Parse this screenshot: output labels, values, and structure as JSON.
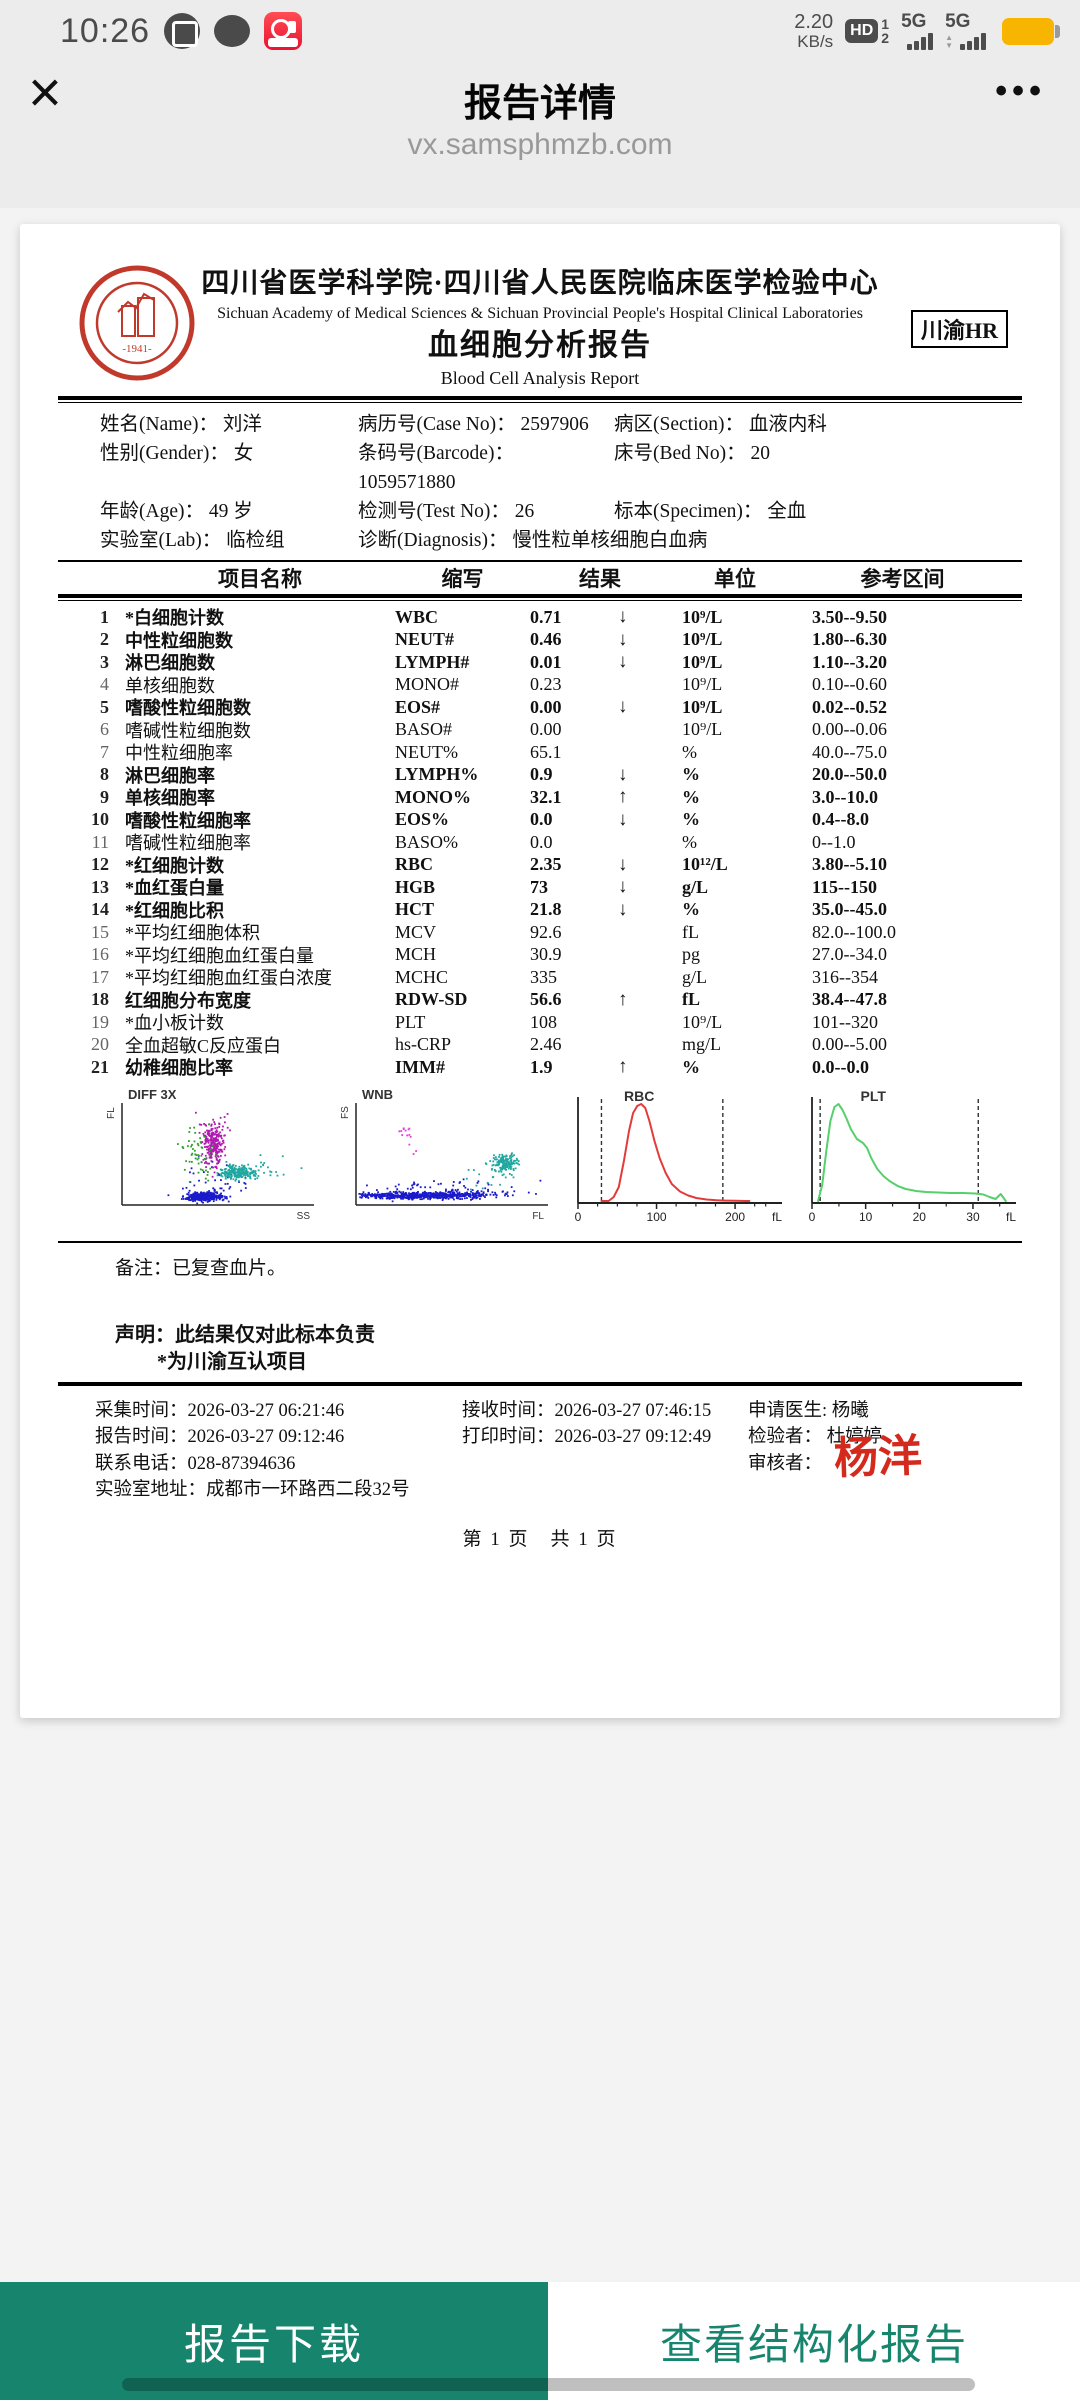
{
  "status_bar": {
    "time": "10:26",
    "net_speed_value": "2.20",
    "net_speed_unit": "KB/s",
    "hd_label": "HD",
    "sim1": "1",
    "sim2": "2",
    "network1": "5G",
    "network2": "5G"
  },
  "nav": {
    "close_glyph": "×",
    "title": "报告详情",
    "url": "vx.samsphmzb.com",
    "more_glyph": "•••"
  },
  "report": {
    "hospital_cn": "四川省医学科学院·四川省人民医院临床医学检验中心",
    "hospital_en": "Sichuan Academy of Medical Sciences & Sichuan Provincial People's Hospital Clinical Laboratories",
    "title_cn": "血细胞分析报告",
    "title_en": "Blood Cell Analysis Report",
    "badge": "川渝HR",
    "seal_year": "-1941-",
    "patient_rows": [
      [
        {
          "label": "姓名(Name)：",
          "value": "刘洋"
        },
        {
          "label": "病历号(Case No)：",
          "value": "2597906"
        },
        {
          "label": "病区(Section)：",
          "value": "血液内科"
        }
      ],
      [
        {
          "label": "性别(Gender)：",
          "value": "女"
        },
        {
          "label": "条码号(Barcode)：",
          "value": "1059571880"
        },
        {
          "label": "床号(Bed No)：",
          "value": "20"
        }
      ],
      [
        {
          "label": "年龄(Age)：",
          "value": "49 岁"
        },
        {
          "label": "检测号(Test No)：",
          "value": "26"
        },
        {
          "label": "标本(Specimen)：",
          "value": "全血"
        }
      ],
      [
        {
          "label": "实验室(Lab)：",
          "value": "临检组"
        },
        {
          "label": "诊断(Diagnosis)：",
          "value": "慢性粒单核细胞白血病",
          "span": 2
        }
      ]
    ],
    "columns": [
      "项目名称",
      "缩写",
      "结果",
      "单位",
      "参考区间"
    ],
    "rows": [
      {
        "no": "1",
        "name": "*白细胞计数",
        "abbr": "WBC",
        "result": "0.71",
        "flag": "↓",
        "unit": "10⁹/L",
        "range": "3.50--9.50",
        "abnormal": true
      },
      {
        "no": "2",
        "name": "中性粒细胞数",
        "abbr": "NEUT#",
        "result": "0.46",
        "flag": "↓",
        "unit": "10⁹/L",
        "range": "1.80--6.30",
        "abnormal": true
      },
      {
        "no": "3",
        "name": "淋巴细胞数",
        "abbr": "LYMPH#",
        "result": "0.01",
        "flag": "↓",
        "unit": "10⁹/L",
        "range": "1.10--3.20",
        "abnormal": true
      },
      {
        "no": "4",
        "name": "单核细胞数",
        "abbr": "MONO#",
        "result": "0.23",
        "flag": "",
        "unit": "10⁹/L",
        "range": "0.10--0.60",
        "abnormal": false
      },
      {
        "no": "5",
        "name": "嗜酸性粒细胞数",
        "abbr": "EOS#",
        "result": "0.00",
        "flag": "↓",
        "unit": "10⁹/L",
        "range": "0.02--0.52",
        "abnormal": true
      },
      {
        "no": "6",
        "name": "嗜碱性粒细胞数",
        "abbr": "BASO#",
        "result": "0.00",
        "flag": "",
        "unit": "10⁹/L",
        "range": "0.00--0.06",
        "abnormal": false
      },
      {
        "no": "7",
        "name": "中性粒细胞率",
        "abbr": "NEUT%",
        "result": "65.1",
        "flag": "",
        "unit": "%",
        "range": "40.0--75.0",
        "abnormal": false
      },
      {
        "no": "8",
        "name": "淋巴细胞率",
        "abbr": "LYMPH%",
        "result": "0.9",
        "flag": "↓",
        "unit": "%",
        "range": "20.0--50.0",
        "abnormal": true
      },
      {
        "no": "9",
        "name": "单核细胞率",
        "abbr": "MONO%",
        "result": "32.1",
        "flag": "↑",
        "unit": "%",
        "range": "3.0--10.0",
        "abnormal": true
      },
      {
        "no": "10",
        "name": "嗜酸性粒细胞率",
        "abbr": "EOS%",
        "result": "0.0",
        "flag": "↓",
        "unit": "%",
        "range": "0.4--8.0",
        "abnormal": true
      },
      {
        "no": "11",
        "name": "嗜碱性粒细胞率",
        "abbr": "BASO%",
        "result": "0.0",
        "flag": "",
        "unit": "%",
        "range": "0--1.0",
        "abnormal": false
      },
      {
        "no": "12",
        "name": "*红细胞计数",
        "abbr": "RBC",
        "result": "2.35",
        "flag": "↓",
        "unit": "10¹²/L",
        "range": "3.80--5.10",
        "abnormal": true
      },
      {
        "no": "13",
        "name": "*血红蛋白量",
        "abbr": "HGB",
        "result": "73",
        "flag": "↓",
        "unit": "g/L",
        "range": "115--150",
        "abnormal": true
      },
      {
        "no": "14",
        "name": "*红细胞比积",
        "abbr": "HCT",
        "result": "21.8",
        "flag": "↓",
        "unit": "%",
        "range": "35.0--45.0",
        "abnormal": true
      },
      {
        "no": "15",
        "name": "*平均红细胞体积",
        "abbr": "MCV",
        "result": "92.6",
        "flag": "",
        "unit": "fL",
        "range": "82.0--100.0",
        "abnormal": false
      },
      {
        "no": "16",
        "name": "*平均红细胞血红蛋白量",
        "abbr": "MCH",
        "result": "30.9",
        "flag": "",
        "unit": "pg",
        "range": "27.0--34.0",
        "abnormal": false
      },
      {
        "no": "17",
        "name": "*平均红细胞血红蛋白浓度",
        "abbr": "MCHC",
        "result": "335",
        "flag": "",
        "unit": "g/L",
        "range": "316--354",
        "abnormal": false
      },
      {
        "no": "18",
        "name": "红细胞分布宽度",
        "abbr": "RDW-SD",
        "result": "56.6",
        "flag": "↑",
        "unit": "fL",
        "range": "38.4--47.8",
        "abnormal": true
      },
      {
        "no": "19",
        "name": "*血小板计数",
        "abbr": "PLT",
        "result": "108",
        "flag": "",
        "unit": "10⁹/L",
        "range": "101--320",
        "abnormal": false
      },
      {
        "no": "20",
        "name": "全血超敏C反应蛋白",
        "abbr": "hs-CRP",
        "result": "2.46",
        "flag": "",
        "unit": "mg/L",
        "range": "0.00--5.00",
        "abnormal": false
      },
      {
        "no": "21",
        "name": "幼稚细胞比率",
        "abbr": "IMM#",
        "result": "1.9",
        "flag": "↑",
        "unit": "%",
        "range": "0.0--0.0",
        "abnormal": true
      }
    ],
    "remark": "备注：已复查血片。",
    "declaration": [
      "声明：此结果仅对此标本负责",
      "*为川渝互认项目"
    ],
    "footer_col1": [
      "采集时间：2026-03-27 06:21:46",
      "报告时间：2026-03-27 09:12:46",
      "联系电话：028-87394636",
      "实验室地址：成都市一环路西二段32号"
    ],
    "footer_col2": [
      "接收时间：2026-03-27 07:46:15",
      "打印时间：2026-03-27 09:12:49"
    ],
    "footer_col3": [
      {
        "label": "申请医生:",
        "value": "杨曦",
        "signature": false
      },
      {
        "label": "检验者：",
        "value": "杜婷婷",
        "signature": false
      },
      {
        "label": "审核者：",
        "value": "杨洋",
        "signature": true
      }
    ],
    "page_line": "第 1 页　共 1 页",
    "signature_color": "#d42a1e"
  },
  "chart_data": [
    {
      "id": "diff3x",
      "type": "scatter",
      "title": "DIFF 3X",
      "xlabel": "SS",
      "ylabel": "FL",
      "clusters": [
        {
          "color": "#1a1acc",
          "cx": 0.42,
          "cy": 0.09,
          "sx": 0.05,
          "sy": 0.02,
          "n": 350
        },
        {
          "color": "#1a1acc",
          "cx": 0.45,
          "cy": 0.22,
          "sx": 0.1,
          "sy": 0.1,
          "n": 45
        },
        {
          "color": "#b01ab0",
          "cx": 0.47,
          "cy": 0.6,
          "sx": 0.028,
          "sy": 0.1,
          "n": 240
        },
        {
          "color": "#b01ab0",
          "cx": 0.47,
          "cy": 0.74,
          "sx": 0.05,
          "sy": 0.08,
          "n": 28
        },
        {
          "color": "#2d9e2d",
          "cx": 0.4,
          "cy": 0.5,
          "sx": 0.05,
          "sy": 0.16,
          "n": 55
        },
        {
          "color": "#1fa8a0",
          "cx": 0.6,
          "cy": 0.33,
          "sx": 0.045,
          "sy": 0.035,
          "n": 220
        },
        {
          "color": "#1fa8a0",
          "cx": 0.72,
          "cy": 0.36,
          "sx": 0.09,
          "sy": 0.06,
          "n": 28
        }
      ]
    },
    {
      "id": "wnb",
      "type": "scatter",
      "title": "WNB",
      "xlabel": "FL",
      "ylabel": "FS",
      "clusters": [
        {
          "color": "#1a1acc",
          "cx": 0.3,
          "cy": 0.1,
          "sx": 0.17,
          "sy": 0.016,
          "n": 500
        },
        {
          "color": "#1a1acc",
          "cx": 0.55,
          "cy": 0.11,
          "sx": 0.12,
          "sy": 0.025,
          "n": 120
        },
        {
          "color": "#1a1acc",
          "cx": 0.45,
          "cy": 0.18,
          "sx": 0.2,
          "sy": 0.05,
          "n": 50
        },
        {
          "color": "#1fa8a0",
          "cx": 0.77,
          "cy": 0.42,
          "sx": 0.032,
          "sy": 0.045,
          "n": 150
        },
        {
          "color": "#1fa8a0",
          "cx": 0.7,
          "cy": 0.3,
          "sx": 0.08,
          "sy": 0.08,
          "n": 18
        },
        {
          "color": "#e33de3",
          "cx": 0.27,
          "cy": 0.7,
          "sx": 0.025,
          "sy": 0.06,
          "n": 14
        }
      ]
    },
    {
      "id": "rbc",
      "type": "histogram",
      "title": "RBC",
      "color": "#e23b3b",
      "unit_label": "fL",
      "ticks": [
        {
          "label": "0",
          "x": 0.0
        },
        {
          "label": "100",
          "x": 0.385
        },
        {
          "label": "200",
          "x": 0.77
        }
      ],
      "minor_ticks": [
        0.096,
        0.193,
        0.289,
        0.481,
        0.578,
        0.674,
        0.866,
        0.92
      ],
      "dashed_lines": [
        0.115,
        0.71
      ],
      "curve": [
        [
          0.115,
          0.02
        ],
        [
          0.15,
          0.02
        ],
        [
          0.175,
          0.06
        ],
        [
          0.2,
          0.16
        ],
        [
          0.225,
          0.42
        ],
        [
          0.25,
          0.72
        ],
        [
          0.27,
          0.9
        ],
        [
          0.29,
          0.97
        ],
        [
          0.31,
          0.99
        ],
        [
          0.33,
          0.95
        ],
        [
          0.35,
          0.82
        ],
        [
          0.375,
          0.62
        ],
        [
          0.4,
          0.45
        ],
        [
          0.43,
          0.3
        ],
        [
          0.46,
          0.19
        ],
        [
          0.5,
          0.115
        ],
        [
          0.54,
          0.075
        ],
        [
          0.58,
          0.05
        ],
        [
          0.63,
          0.035
        ],
        [
          0.68,
          0.027
        ],
        [
          0.72,
          0.024
        ],
        [
          0.77,
          0.022
        ],
        [
          0.82,
          0.02
        ],
        [
          0.84,
          0.02
        ]
      ]
    },
    {
      "id": "plt",
      "type": "histogram",
      "title": "PLT",
      "color": "#55d06a",
      "unit_label": "fL",
      "ticks": [
        {
          "label": "0",
          "x": 0.0
        },
        {
          "label": "10",
          "x": 0.263
        },
        {
          "label": "20",
          "x": 0.526
        },
        {
          "label": "30",
          "x": 0.789
        }
      ],
      "minor_ticks": [
        0.132,
        0.395,
        0.658,
        0.92
      ],
      "dashed_lines": [
        0.04,
        0.815
      ],
      "curve": [
        [
          0.03,
          0.02
        ],
        [
          0.05,
          0.18
        ],
        [
          0.07,
          0.52
        ],
        [
          0.09,
          0.82
        ],
        [
          0.11,
          0.96
        ],
        [
          0.13,
          0.99
        ],
        [
          0.15,
          0.93
        ],
        [
          0.17,
          0.84
        ],
        [
          0.19,
          0.74
        ],
        [
          0.22,
          0.64
        ],
        [
          0.25,
          0.6
        ],
        [
          0.27,
          0.55
        ],
        [
          0.29,
          0.45
        ],
        [
          0.32,
          0.34
        ],
        [
          0.35,
          0.27
        ],
        [
          0.38,
          0.22
        ],
        [
          0.42,
          0.17
        ],
        [
          0.46,
          0.14
        ],
        [
          0.51,
          0.12
        ],
        [
          0.56,
          0.11
        ],
        [
          0.62,
          0.105
        ],
        [
          0.68,
          0.1
        ],
        [
          0.74,
          0.1
        ],
        [
          0.8,
          0.095
        ],
        [
          0.84,
          0.085
        ],
        [
          0.87,
          0.06
        ],
        [
          0.9,
          0.04
        ],
        [
          0.925,
          0.09
        ],
        [
          0.95,
          0.02
        ]
      ]
    }
  ],
  "buttons": {
    "download": "报告下载",
    "structured": "查看结构化报告"
  }
}
